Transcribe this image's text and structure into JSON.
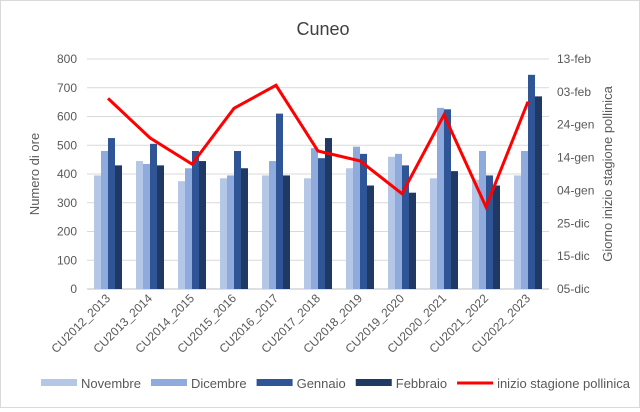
{
  "chart_data": {
    "type": "bar",
    "title": "Cuneo",
    "ylabel": "Numero di ore",
    "y2label": "Giorno inizio stagione pollinica",
    "ylim": [
      0,
      800
    ],
    "yticks": [
      "0",
      "100",
      "200",
      "300",
      "400",
      "500",
      "600",
      "700",
      "800"
    ],
    "y2ticks": [
      "05-dic",
      "15-dic",
      "25-dic",
      "04-gen",
      "14-gen",
      "24-gen",
      "03-feb",
      "13-feb"
    ],
    "grid": "horizontal",
    "legend": "bottom",
    "categories": [
      "CU2012_2013",
      "CU2013_2014",
      "CU2014_2015",
      "CU2015_2016",
      "CU2016_2017",
      "CU2017_2018",
      "CU2018_2019",
      "CU2019_2020",
      "CU2020_2021",
      "CU2021_2022",
      "CU2022_2023"
    ],
    "series": [
      {
        "name": "Novembre",
        "color": "#b4c7e7",
        "values": [
          395,
          445,
          375,
          385,
          395,
          385,
          420,
          460,
          385,
          380,
          395
        ]
      },
      {
        "name": "Dicembre",
        "color": "#8faadc",
        "values": [
          480,
          435,
          420,
          395,
          445,
          490,
          495,
          470,
          630,
          480,
          480
        ]
      },
      {
        "name": "Gennaio",
        "color": "#2f5597",
        "values": [
          525,
          505,
          480,
          480,
          610,
          455,
          470,
          430,
          625,
          395,
          745
        ]
      },
      {
        "name": "Febbraio",
        "color": "#203864",
        "values": [
          430,
          430,
          445,
          420,
          395,
          525,
          360,
          335,
          410,
          360,
          670
        ]
      }
    ],
    "line_series": {
      "name": "inizio stagione pollinica",
      "color": "#ff0000",
      "axis": "secondary",
      "values": [
        "01-feb",
        "20-gen",
        "12-gen",
        "29-gen",
        "05-feb",
        "16-gen",
        "13-gen",
        "03-gen",
        "27-gen",
        "30-dic",
        "31-gen"
      ]
    }
  }
}
